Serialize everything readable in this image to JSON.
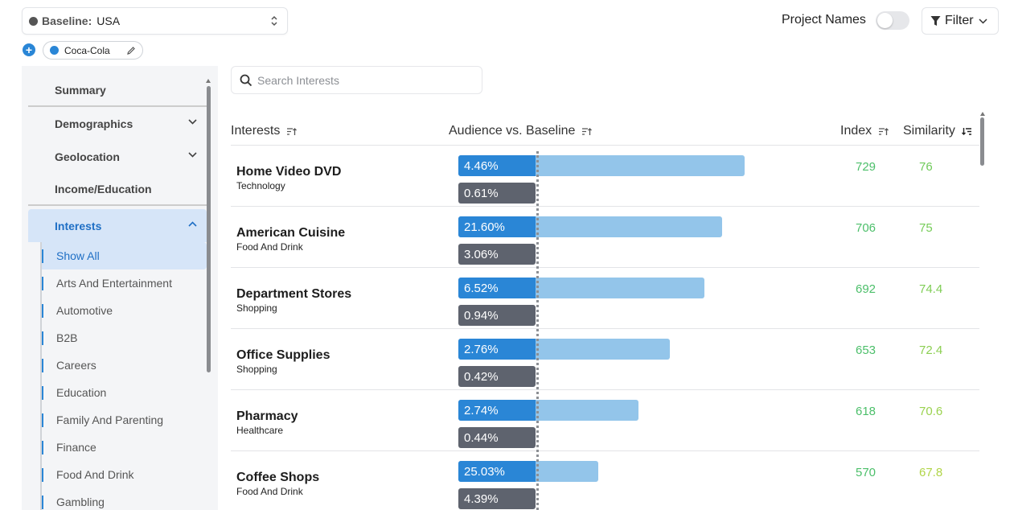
{
  "colors": {
    "accent": "#2a86d6",
    "audience_bar": "#2a86d6",
    "audience_bar_light": "#93c5ea",
    "baseline_bar": "#5e636e",
    "index_green": "#4cbf6a",
    "active_bg": "#d6e5f8"
  },
  "topbar": {
    "baseline_label": "Baseline:",
    "baseline_value": "USA",
    "audience_chip": "Coca-Cola",
    "project_names_label": "Project Names",
    "filter_label": "Filter"
  },
  "sidebar": {
    "items": [
      {
        "label": "Summary"
      },
      {
        "label": "Demographics"
      },
      {
        "label": "Geolocation"
      },
      {
        "label": "Income/Education"
      },
      {
        "label": "Interests"
      }
    ],
    "sub_items": [
      {
        "label": "Show All"
      },
      {
        "label": "Arts And Entertainment"
      },
      {
        "label": "Automotive"
      },
      {
        "label": "B2B"
      },
      {
        "label": "Careers"
      },
      {
        "label": "Education"
      },
      {
        "label": "Family And Parenting"
      },
      {
        "label": "Finance"
      },
      {
        "label": "Food And Drink"
      },
      {
        "label": "Gambling"
      }
    ]
  },
  "search": {
    "placeholder": "Search Interests"
  },
  "table": {
    "headers": {
      "interests": "Interests",
      "audience_vs_baseline": "Audience vs. Baseline",
      "index": "Index",
      "similarity": "Similarity"
    },
    "rows": [
      {
        "name": "Home Video DVD",
        "category": "Technology",
        "audience_pct": "4.46%",
        "baseline_pct": "0.61%",
        "index": "729",
        "similarity": "76",
        "audience_bar_level": 1.0
      },
      {
        "name": "American Cuisine",
        "category": "Food And Drink",
        "audience_pct": "21.60%",
        "baseline_pct": "3.06%",
        "index": "706",
        "similarity": "75",
        "audience_bar_level": 0.92
      },
      {
        "name": "Department Stores",
        "category": "Shopping",
        "audience_pct": "6.52%",
        "baseline_pct": "0.94%",
        "index": "692",
        "similarity": "74.4",
        "audience_bar_level": 0.86
      },
      {
        "name": "Office Supplies",
        "category": "Shopping",
        "audience_pct": "2.76%",
        "baseline_pct": "0.42%",
        "index": "653",
        "similarity": "72.4",
        "audience_bar_level": 0.74
      },
      {
        "name": "Pharmacy",
        "category": "Healthcare",
        "audience_pct": "2.74%",
        "baseline_pct": "0.44%",
        "index": "618",
        "similarity": "70.6",
        "audience_bar_level": 0.63
      },
      {
        "name": "Coffee Shops",
        "category": "Food And Drink",
        "audience_pct": "25.03%",
        "baseline_pct": "4.39%",
        "index": "570",
        "similarity": "67.8",
        "audience_bar_level": 0.49
      }
    ]
  }
}
